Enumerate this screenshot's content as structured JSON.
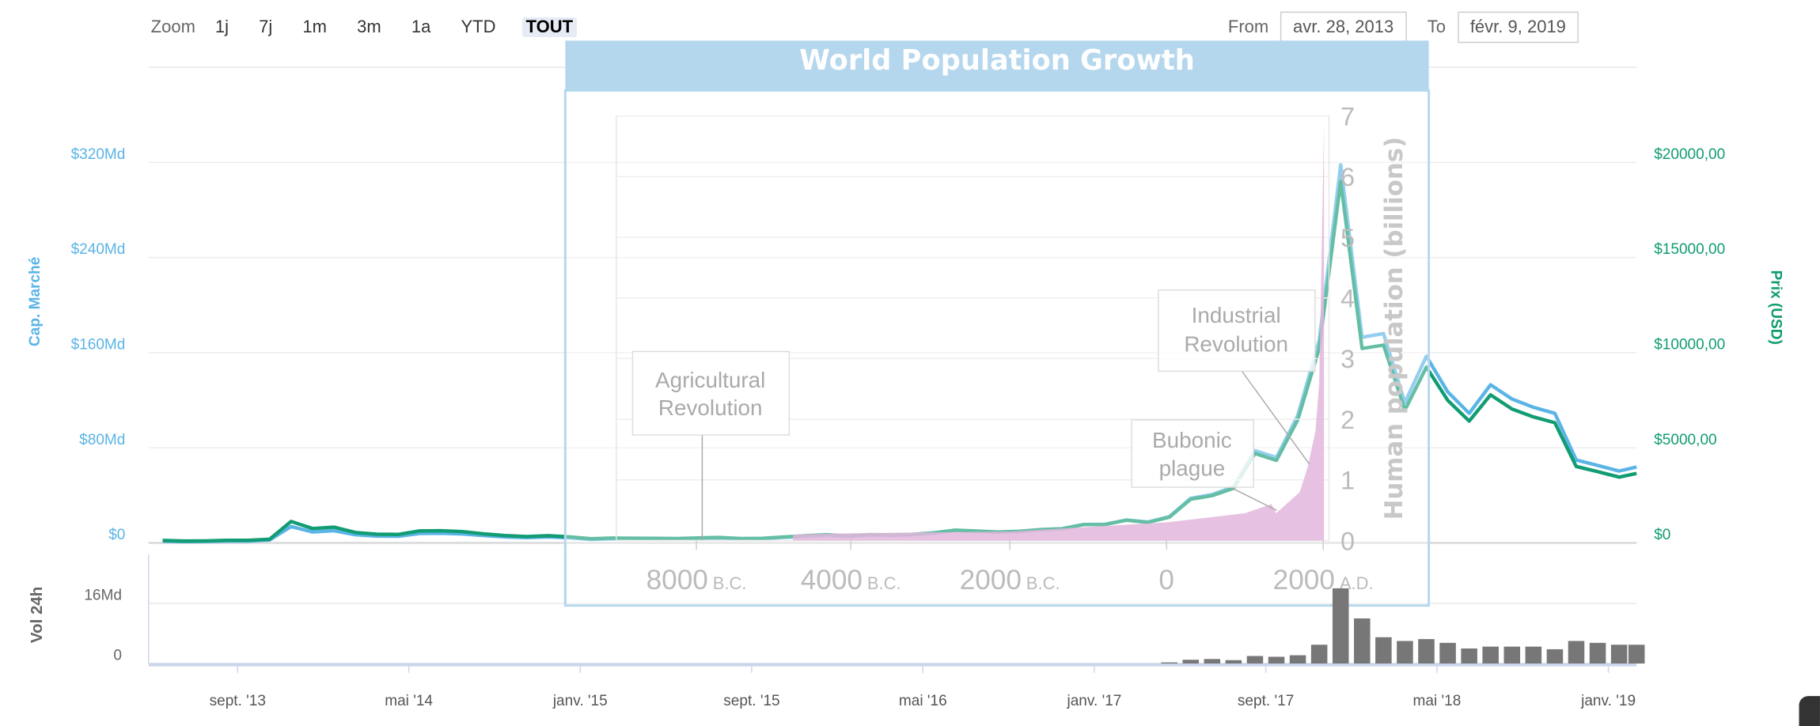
{
  "toolbar": {
    "zoom_label": "Zoom",
    "buttons": [
      "1j",
      "7j",
      "1m",
      "3m",
      "1a",
      "YTD",
      "TOUT"
    ],
    "active": "TOUT",
    "from_label": "From",
    "from_value": "avr. 28, 2013",
    "to_label": "To",
    "to_value": "févr. 9, 2019"
  },
  "colors": {
    "cap": "#5ab4e6",
    "price": "#119c73",
    "volume": "#777777",
    "population": "#e2b6dc",
    "overlay": "#b5d7ee"
  },
  "chart_data": {
    "type": "line",
    "x_range": [
      2013.3205,
      2019.1096
    ],
    "left_axis": {
      "title": "Cap. Marché",
      "ylim": [
        0,
        400
      ],
      "ticks": [
        0,
        80,
        160,
        240,
        320
      ],
      "tick_labels": [
        "$0",
        "$80Md",
        "$160Md",
        "$240Md",
        "$320Md"
      ]
    },
    "right_axis": {
      "title": "Prix (USD)",
      "ylim": [
        0,
        25000
      ],
      "ticks": [
        0,
        5000,
        10000,
        15000,
        20000
      ],
      "tick_labels": [
        "$0",
        "$5000,00",
        "$10000,00",
        "$15000,00",
        "$20000,00"
      ]
    },
    "volume_axis": {
      "title": "Vol 24h",
      "ylim": [
        0,
        29
      ],
      "ticks": [
        0,
        16
      ],
      "tick_labels": [
        "0",
        "16Md"
      ]
    },
    "x_ticks": [
      {
        "label": "sept. '13",
        "x": 2013.667
      },
      {
        "label": "mai '14",
        "x": 2014.333
      },
      {
        "label": "janv. '15",
        "x": 2015.0
      },
      {
        "label": "sept. '15",
        "x": 2015.667
      },
      {
        "label": "mai '16",
        "x": 2016.333
      },
      {
        "label": "janv. '17",
        "x": 2017.0
      },
      {
        "label": "sept. '17",
        "x": 2017.667
      },
      {
        "label": "mai '18",
        "x": 2018.333
      },
      {
        "label": "janv. '19",
        "x": 2019.0
      }
    ],
    "start_year": 2013,
    "start_month": 5,
    "series": [
      {
        "name": "Prix (USD)",
        "axis": "right",
        "values": [
          129,
          97,
          106,
          135,
          133,
          198,
          1130,
          754,
          830,
          550,
          457,
          448,
          627,
          640,
          589,
          478,
          386,
          338,
          378,
          320,
          217,
          254,
          244,
          236,
          230,
          263,
          284,
          230,
          236,
          314,
          377,
          430,
          368,
          437,
          416,
          448,
          531,
          673,
          624,
          575,
          609,
          698,
          742,
          963,
          970,
          1190,
          1080,
          1348,
          2300,
          2480,
          2875,
          4703,
          4338,
          6468,
          10233,
          19000,
          10221,
          10397,
          6973,
          9240,
          7494,
          6404,
          7780,
          7037,
          6625,
          6318,
          4017,
          3742,
          3457,
          3650
        ]
      },
      {
        "name": "Cap. Marché (Md)",
        "axis": "left",
        "values": [
          1.5,
          1.1,
          1.2,
          1.6,
          1.6,
          2.4,
          13.8,
          9.2,
          10.2,
          6.8,
          5.7,
          5.6,
          7.9,
          8.1,
          7.5,
          6.1,
          5.0,
          4.4,
          5.0,
          4.3,
          2.9,
          3.5,
          3.4,
          3.3,
          3.2,
          3.7,
          4.0,
          3.3,
          3.4,
          4.6,
          5.5,
          6.4,
          5.5,
          6.6,
          6.3,
          6.8,
          8.1,
          10.5,
          9.8,
          9.1,
          9.7,
          11.2,
          11.9,
          15.5,
          15.6,
          19.3,
          17.6,
          22.0,
          37.6,
          40.7,
          47.3,
          77.6,
          71.8,
          107.3,
          170.3,
          318,
          173,
          176,
          118,
          157,
          127,
          109,
          133,
          121,
          114,
          109,
          69.8,
          65.2,
          60.4,
          63.8
        ]
      },
      {
        "name": "Vol 24h (Md)",
        "axis": "volume",
        "start_year": 2017,
        "start_month": 4,
        "values": [
          0.3,
          1.0,
          1.2,
          0.9,
          2.0,
          1.8,
          2.2,
          5,
          20,
          12,
          7,
          6,
          6.5,
          5.5,
          4,
          4.5,
          4.5,
          4.5,
          3.8,
          6,
          5.5,
          5,
          5
        ]
      }
    ]
  },
  "overlay": {
    "title": "World Population Growth",
    "y_title": "Human population (billions)",
    "y_ticks": [
      "0",
      "1",
      "2",
      "3",
      "4",
      "5",
      "6",
      "7"
    ],
    "x_ticks": [
      {
        "value": "8000",
        "era": "B.C.",
        "year": -8000
      },
      {
        "value": "4000",
        "era": "B.C.",
        "year": -4000
      },
      {
        "value": "2000",
        "era": "B.C.",
        "year": -2000
      },
      {
        "value": "0",
        "era": "",
        "year": 0
      },
      {
        "value": "2000",
        "era": "A.D.",
        "year": 2000
      }
    ],
    "annotations": {
      "agri_1": "Agricultural",
      "agri_2": "Revolution",
      "indus_1": "Industrial",
      "indus_2": "Revolution",
      "plague_1": "Bubonic",
      "plague_2": "plague"
    },
    "population": [
      [
        -5500,
        0.1
      ],
      [
        -4000,
        0.12
      ],
      [
        -2000,
        0.15
      ],
      [
        0,
        0.3
      ],
      [
        1000,
        0.45
      ],
      [
        1340,
        0.6
      ],
      [
        1400,
        0.45
      ],
      [
        1700,
        0.8
      ],
      [
        1800,
        1.2
      ],
      [
        1900,
        1.8
      ],
      [
        1950,
        2.6
      ],
      [
        2000,
        6.1
      ],
      [
        2010,
        6.9
      ]
    ]
  }
}
